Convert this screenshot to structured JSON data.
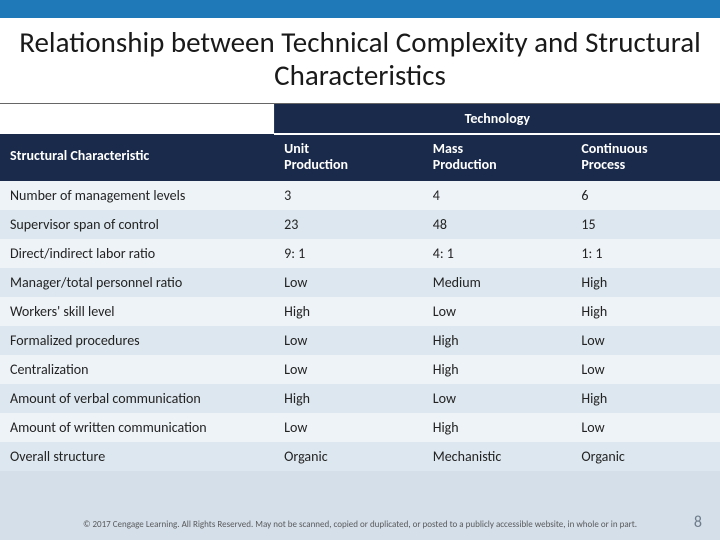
{
  "colors": {
    "top_bar": "#1f78b8",
    "header_bg": "#1a2a4a",
    "header_text": "#ffffff",
    "body_bg": "#d4dfea",
    "row_odd": "#eef3f7",
    "row_even": "#dde7ef",
    "title_text": "#1a1a1a",
    "footer_text": "#5a5a5a",
    "page_num": "#6f7c8a"
  },
  "title": "Relationship between Technical Complexity and Structural Characteristics",
  "table": {
    "super_header": "Technology",
    "row_header": "Structural Characteristic",
    "columns": [
      {
        "line1": "Unit",
        "line2": "Production"
      },
      {
        "line1": "Mass",
        "line2": "Production"
      },
      {
        "line1": "Continuous",
        "line2": "Process"
      }
    ],
    "rows": [
      {
        "label": "Number of management levels",
        "c": [
          "3",
          "4",
          "6"
        ]
      },
      {
        "label": "Supervisor span of control",
        "c": [
          "23",
          "48",
          "15"
        ]
      },
      {
        "label": "Direct/indirect labor ratio",
        "c": [
          "9: 1",
          "4: 1",
          "1: 1"
        ]
      },
      {
        "label": "Manager/total personnel ratio",
        "c": [
          "Low",
          "Medium",
          "High"
        ]
      },
      {
        "label": "Workers' skill level",
        "c": [
          "High",
          "Low",
          "High"
        ]
      },
      {
        "label": "Formalized procedures",
        "c": [
          "Low",
          "High",
          "Low"
        ]
      },
      {
        "label": "Centralization",
        "c": [
          "Low",
          "High",
          "Low"
        ]
      },
      {
        "label": "Amount of verbal communication",
        "c": [
          "High",
          "Low",
          "High"
        ]
      },
      {
        "label": "Amount of written communication",
        "c": [
          "Low",
          "High",
          "Low"
        ]
      },
      {
        "label": "Overall structure",
        "c": [
          "Organic",
          "Mechanistic",
          "Organic"
        ]
      }
    ]
  },
  "footer": "© 2017 Cengage Learning. All Rights Reserved. May not be scanned, copied or duplicated, or posted to a publicly accessible website, in whole or in part.",
  "page_number": "8"
}
